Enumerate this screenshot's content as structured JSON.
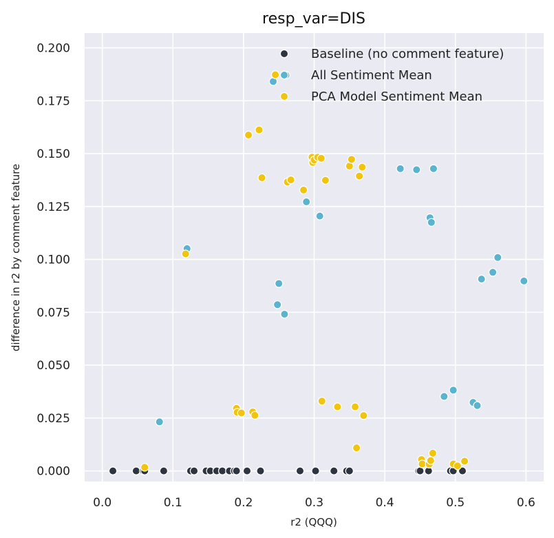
{
  "chart_data": {
    "type": "scatter",
    "title": "resp_var=DIS",
    "xlabel": "r2 (QQQ)",
    "ylabel": "difference in r2 by comment feature",
    "xlim": [
      -0.025,
      0.625
    ],
    "ylim": [
      -0.005,
      0.207
    ],
    "xticks": [
      0.0,
      0.1,
      0.2,
      0.3,
      0.4,
      0.5,
      0.6
    ],
    "xtick_labels": [
      "0.0",
      "0.1",
      "0.2",
      "0.3",
      "0.4",
      "0.5",
      "0.6"
    ],
    "yticks": [
      0.0,
      0.025,
      0.05,
      0.075,
      0.1,
      0.125,
      0.15,
      0.175,
      0.2
    ],
    "ytick_labels": [
      "0.000",
      "0.025",
      "0.050",
      "0.075",
      "0.100",
      "0.125",
      "0.150",
      "0.175",
      "0.200"
    ],
    "grid": true,
    "legend_position": "top-right",
    "series": [
      {
        "name": "Baseline (no comment feature)",
        "color": "#2e3440",
        "points": [
          [
            0.015,
            0
          ],
          [
            0.048,
            0
          ],
          [
            0.058,
            0
          ],
          [
            0.06,
            0
          ],
          [
            0.087,
            0
          ],
          [
            0.125,
            0
          ],
          [
            0.13,
            0
          ],
          [
            0.147,
            0
          ],
          [
            0.153,
            0
          ],
          [
            0.162,
            0
          ],
          [
            0.17,
            0
          ],
          [
            0.18,
            0
          ],
          [
            0.187,
            0
          ],
          [
            0.19,
            0
          ],
          [
            0.205,
            0
          ],
          [
            0.224,
            0
          ],
          [
            0.28,
            0
          ],
          [
            0.302,
            0
          ],
          [
            0.328,
            0
          ],
          [
            0.346,
            0
          ],
          [
            0.35,
            0
          ],
          [
            0.448,
            0
          ],
          [
            0.45,
            0
          ],
          [
            0.462,
            0
          ],
          [
            0.493,
            0
          ],
          [
            0.497,
            0
          ],
          [
            0.51,
            0
          ]
        ]
      },
      {
        "name": "All Sentiment Mean",
        "color": "#5ab4cf",
        "points": [
          [
            0.081,
            0.0232
          ],
          [
            0.12,
            0.1051
          ],
          [
            0.242,
            0.1841
          ],
          [
            0.26,
            0.1871
          ],
          [
            0.25,
            0.0886
          ],
          [
            0.248,
            0.0786
          ],
          [
            0.258,
            0.0741
          ],
          [
            0.289,
            0.1272
          ],
          [
            0.308,
            0.1205
          ],
          [
            0.422,
            0.1429
          ],
          [
            0.445,
            0.1424
          ],
          [
            0.469,
            0.1429
          ],
          [
            0.464,
            0.1197
          ],
          [
            0.466,
            0.1175
          ],
          [
            0.484,
            0.0352
          ],
          [
            0.497,
            0.0382
          ],
          [
            0.525,
            0.0324
          ],
          [
            0.531,
            0.0309
          ],
          [
            0.537,
            0.0907
          ],
          [
            0.553,
            0.0939
          ],
          [
            0.56,
            0.1009
          ],
          [
            0.597,
            0.0898
          ]
        ]
      },
      {
        "name": "PCA Model Sentiment Mean",
        "color": "#f1c40f",
        "points": [
          [
            0.06,
            0.0017
          ],
          [
            0.118,
            0.1026
          ],
          [
            0.207,
            0.1588
          ],
          [
            0.222,
            0.1612
          ],
          [
            0.226,
            0.1386
          ],
          [
            0.245,
            0.1873
          ],
          [
            0.262,
            0.1366
          ],
          [
            0.267,
            0.1376
          ],
          [
            0.285,
            0.1328
          ],
          [
            0.297,
            0.1483
          ],
          [
            0.298,
            0.1458
          ],
          [
            0.3,
            0.147
          ],
          [
            0.305,
            0.1483
          ],
          [
            0.31,
            0.1478
          ],
          [
            0.316,
            0.1374
          ],
          [
            0.35,
            0.1441
          ],
          [
            0.353,
            0.1473
          ],
          [
            0.364,
            0.1394
          ],
          [
            0.368,
            0.1436
          ],
          [
            0.19,
            0.0296
          ],
          [
            0.191,
            0.0277
          ],
          [
            0.197,
            0.0274
          ],
          [
            0.213,
            0.0279
          ],
          [
            0.216,
            0.0263
          ],
          [
            0.311,
            0.033
          ],
          [
            0.333,
            0.0303
          ],
          [
            0.358,
            0.0303
          ],
          [
            0.37,
            0.0262
          ],
          [
            0.36,
            0.0109
          ],
          [
            0.452,
            0.0054
          ],
          [
            0.453,
            0.0033
          ],
          [
            0.463,
            0.0032
          ],
          [
            0.465,
            0.0049
          ],
          [
            0.468,
            0.0084
          ],
          [
            0.497,
            0.0033
          ],
          [
            0.503,
            0.0024
          ],
          [
            0.513,
            0.0046
          ]
        ]
      }
    ]
  }
}
